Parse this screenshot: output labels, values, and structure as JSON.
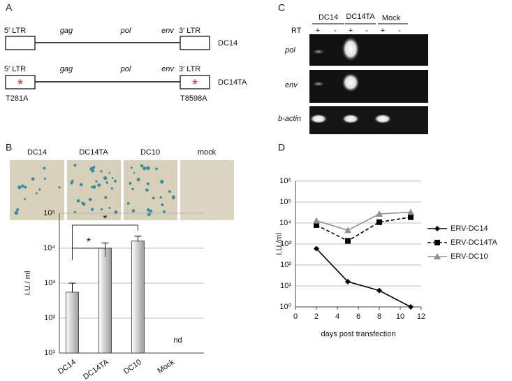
{
  "panels": {
    "a": {
      "label": "A",
      "rows": [
        {
          "left": "5′ LTR",
          "right": "3′ LTR",
          "genes": [
            "gag",
            "pol",
            "env"
          ],
          "name": "DC14"
        },
        {
          "left": "5′ LTR",
          "right": "3′ LTR",
          "genes": [
            "gag",
            "pol",
            "env"
          ],
          "name": "DC14TA",
          "mutation_mark": "*",
          "left_mutation": "T281A",
          "right_mutation": "T8598A"
        }
      ]
    },
    "b": {
      "label": "B",
      "images": [
        "DC14",
        "DC14TA",
        "DC10",
        "mock"
      ]
    },
    "c": {
      "label": "C",
      "groups": [
        "DC14",
        "DC14TA",
        "Mock"
      ],
      "rt_label": "RT",
      "rt_signs": [
        "+",
        "-",
        "+",
        "-",
        "+",
        "-"
      ],
      "rows": [
        "pol",
        "env",
        "b-actin"
      ]
    },
    "d": {
      "label": "D"
    }
  },
  "chart_data": [
    {
      "type": "bar",
      "categories": [
        "DC14",
        "DC14TA",
        "DC10",
        "Mock"
      ],
      "values": [
        550,
        10000,
        16000,
        null
      ],
      "errors": [
        450,
        4000,
        6000,
        null
      ],
      "value_labels": [
        null,
        null,
        null,
        "nd"
      ],
      "color": "#9a9a9a",
      "ylabel": "I.U./ ml",
      "ylim": [
        10,
        100000
      ],
      "log_scale": true,
      "grid": true,
      "yticks": [
        {
          "value": 10,
          "label": "10¹"
        },
        {
          "value": 100,
          "label": "10²"
        },
        {
          "value": 1000,
          "label": "10³"
        },
        {
          "value": 10000,
          "label": "10⁴"
        },
        {
          "value": 100000,
          "label": "10⁵"
        }
      ],
      "annotations": [
        "*",
        "*"
      ]
    },
    {
      "type": "line",
      "xlabel": "days post transfection",
      "ylabel": "I.U./ml",
      "x": [
        2,
        5,
        8,
        11
      ],
      "series": [
        {
          "name": "ERV-DC14",
          "color": "#000000",
          "marker": "diamond",
          "dashed": false,
          "values": [
            600,
            16,
            6,
            1
          ]
        },
        {
          "name": "ERV-DC14TA",
          "color": "#000000",
          "marker": "square",
          "dashed": true,
          "values": [
            8000,
            1400,
            11000,
            19000
          ]
        },
        {
          "name": "ERV-DC10",
          "color": "#909090",
          "marker": "triangle",
          "dashed": false,
          "values": [
            13000,
            4500,
            27000,
            33000
          ]
        }
      ],
      "xlim": [
        0,
        12
      ],
      "xticks": [
        0,
        2,
        4,
        6,
        8,
        10,
        12
      ],
      "ylim": [
        1,
        1000000
      ],
      "log_scale": true,
      "grid": true,
      "legend": "right",
      "yticks": [
        {
          "value": 1,
          "label": "10⁰"
        },
        {
          "value": 10,
          "label": "10¹"
        },
        {
          "value": 100,
          "label": "10²"
        },
        {
          "value": 1000,
          "label": "10³"
        },
        {
          "value": 10000,
          "label": "10⁴"
        },
        {
          "value": 100000,
          "label": "10⁵"
        },
        {
          "value": 1000000,
          "label": "10⁶"
        }
      ]
    }
  ]
}
